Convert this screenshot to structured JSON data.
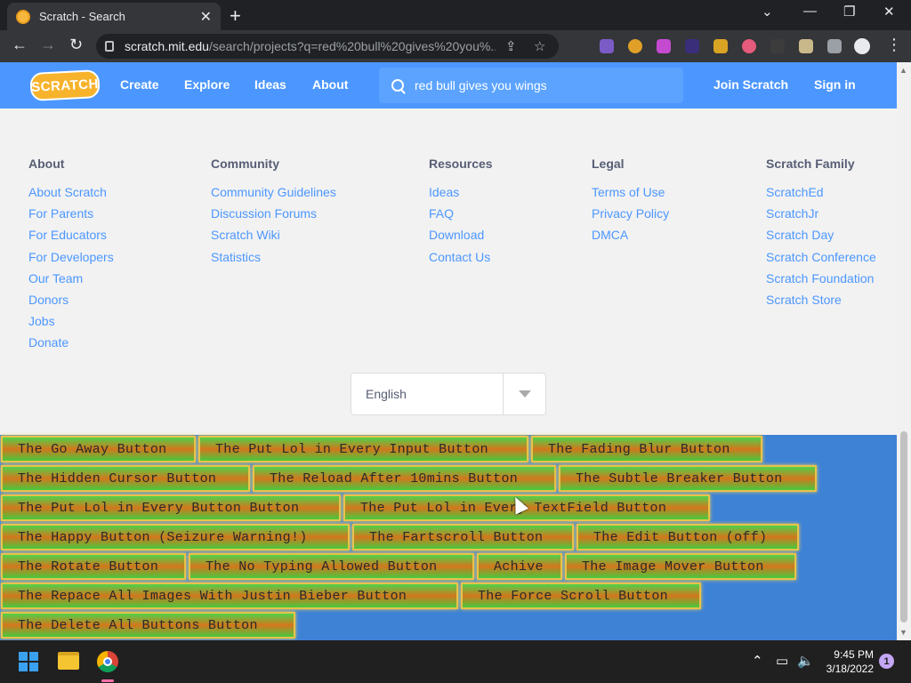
{
  "browser": {
    "tab_title": "Scratch - Search",
    "new_tab": "+",
    "close": "✕",
    "url_host": "scratch.mit.edu",
    "url_rest": "/search/projects?q=red%20bull%20gives%20you%..."
  },
  "nav": {
    "logo": "SCRATCH",
    "links": [
      "Create",
      "Explore",
      "Ideas",
      "About"
    ],
    "search_value": "red bull gives you wings",
    "join": "Join Scratch",
    "signin": "Sign in"
  },
  "footer": {
    "columns": [
      {
        "heading": "About",
        "links": [
          "About Scratch",
          "For Parents",
          "For Educators",
          "For Developers",
          "Our Team",
          "Donors",
          "Jobs",
          "Donate"
        ]
      },
      {
        "heading": "Community",
        "links": [
          "Community Guidelines",
          "Discussion Forums",
          "Scratch Wiki",
          "Statistics"
        ]
      },
      {
        "heading": "Resources",
        "links": [
          "Ideas",
          "FAQ",
          "Download",
          "Contact Us"
        ]
      },
      {
        "heading": "Legal",
        "links": [
          "Terms of Use",
          "Privacy Policy",
          "DMCA"
        ]
      },
      {
        "heading": "Scratch Family",
        "links": [
          "ScratchEd",
          "ScratchJr",
          "Scratch Day",
          "Scratch Conference",
          "Scratch Foundation",
          "Scratch Store"
        ]
      }
    ],
    "language": "English"
  },
  "prank_buttons": [
    "The Go Away Button",
    "The Put Lol in Every Input Button",
    "The Fading Blur Button",
    "The Hidden Cursor Button",
    "The Reload After 10mins Button",
    "The Subtle Breaker Button",
    "The Put Lol in Every Button Button",
    "The Put Lol in Every TextField Button",
    "The Happy Button (Seizure Warning!)",
    "The Fartscroll Button",
    "The Edit Button (off)",
    "The Rotate Button",
    "The No Typing Allowed Button",
    "Achive",
    "The Image Mover Button",
    "The Repace All Images With Justin Bieber Button",
    "The Force Scroll Button",
    "The Delete All Buttons Button"
  ],
  "taskbar": {
    "time": "9:45 PM",
    "date": "3/18/2022",
    "notifications": "1"
  },
  "colors": {
    "scratch_blue": "#4c97ff",
    "prank_bg": "#3e82d6"
  }
}
